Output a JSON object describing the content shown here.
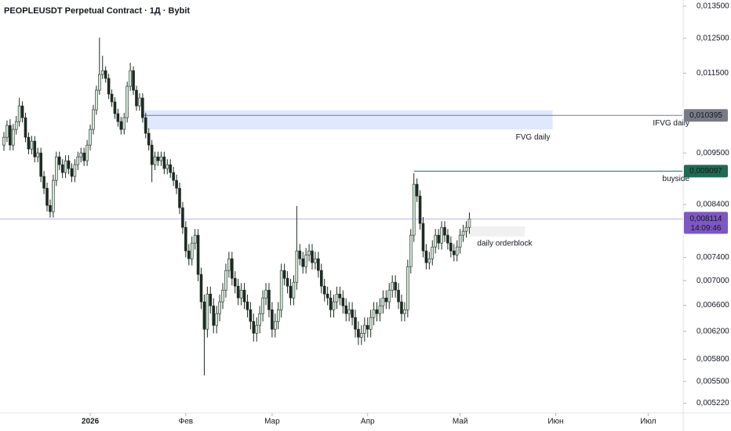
{
  "chart_data": {
    "type": "candlestick",
    "title": "PEOPLEUSDT Perpetual Contract · 1Д · Bybit",
    "up_color": "#d3e8d8",
    "down_color": "#1e2a22",
    "wick_color": "#1e2a22",
    "log_scale": true,
    "grid": false,
    "xlim": [
      -1.27,
      220.1
    ],
    "xticks": [
      {
        "value": 28,
        "label": "2026"
      },
      {
        "value": 59,
        "label": "Фев"
      },
      {
        "value": 87,
        "label": "Мар"
      },
      {
        "value": 118,
        "label": "Апр"
      },
      {
        "value": 148,
        "label": "Май"
      },
      {
        "value": 179,
        "label": "Июн"
      },
      {
        "value": 209,
        "label": "Июл"
      }
    ],
    "ylim": [
      0.0051,
      0.0137
    ],
    "yticks": [
      {
        "value": 0.0135,
        "label": "0,013500"
      },
      {
        "value": 0.0125,
        "label": "0,012500"
      },
      {
        "value": 0.0115,
        "label": "0,011500"
      },
      {
        "value": 0.0095,
        "label": "0,009500"
      },
      {
        "value": 0.0084,
        "label": "0,008400"
      },
      {
        "value": 0.0074,
        "label": "0,007400"
      },
      {
        "value": 0.007,
        "label": "0,007000"
      },
      {
        "value": 0.0066,
        "label": "0,006600"
      },
      {
        "value": 0.0062,
        "label": "0,006200"
      },
      {
        "value": 0.0058,
        "label": "0,005800"
      },
      {
        "value": 0.0055,
        "label": "0,005500"
      },
      {
        "value": 0.00522,
        "label": "0,005220"
      }
    ],
    "open": [
      0.009682,
      0.009865,
      0.010148,
      0.009682,
      0.010052,
      0.010243,
      0.010634,
      0.010339,
      0.009865,
      0.009591,
      0.009774,
      0.009413,
      0.009502,
      0.008983,
      0.008732,
      0.00838,
      0.008256,
      0.008898,
      0.009413,
      0.009239,
      0.009067,
      0.009326,
      0.009153,
      0.008983,
      0.009239,
      0.009413,
      0.009502,
      0.009326,
      0.009682,
      0.010052,
      0.010535,
      0.011041,
      0.011464,
      0.01157,
      0.011357,
      0.010938,
      0.010736,
      0.010438,
      0.010243,
      0.010052,
      0.010339,
      0.011145,
      0.01157,
      0.011041,
      0.010634,
      0.010837,
      0.010339,
      0.009959,
      0.009682,
      0.009239,
      0.009413,
      0.009326,
      0.009413,
      0.009153,
      0.009239,
      0.009067,
      0.008898,
      0.008732,
      0.008334,
      0.007951,
      0.007516,
      0.007376,
      0.007658,
      0.007804,
      0.007105,
      0.006654,
      0.006231,
      0.006779,
      0.006591,
      0.00629,
      0.006469,
      0.006654,
      0.006843,
      0.007172,
      0.007376,
      0.007039,
      0.006908,
      0.006716,
      0.006843,
      0.006654,
      0.006529,
      0.006349,
      0.006172,
      0.00629,
      0.006469,
      0.006716,
      0.006843,
      0.006529,
      0.006231,
      0.006349,
      0.006529,
      0.007172,
      0.007039,
      0.006908,
      0.006716,
      0.006973,
      0.007516,
      0.007376,
      0.007239,
      0.007445,
      0.007516,
      0.007307,
      0.007376,
      0.007172,
      0.006908,
      0.006779,
      0.006716,
      0.006529,
      0.006654,
      0.006779,
      0.006716,
      0.006591,
      0.006469,
      0.006529,
      0.006409,
      0.006231,
      0.006114,
      0.006172,
      0.00629,
      0.006231,
      0.006409,
      0.006529,
      0.006469,
      0.006591,
      0.006716,
      0.006654,
      0.006843,
      0.006973,
      0.006843,
      0.006654,
      0.006469,
      0.006529,
      0.007239,
      0.007804,
      0.008816,
      0.008571,
      0.008027,
      0.007516,
      0.007307,
      0.007376,
      0.007587,
      0.007804,
      0.007658,
      0.007951,
      0.007804,
      0.007658,
      0.007516,
      0.007445,
      0.007587,
      0.007804,
      0.007877,
      0.007951
    ],
    "high": [
      0.00999,
      0.01027,
      0.0103,
      0.01018,
      0.01038,
      0.01084,
      0.01075,
      0.01046,
      0.00998,
      0.0099,
      0.00989,
      0.00962,
      0.00962,
      0.0091,
      0.00885,
      0.0085,
      0.00902,
      0.00953,
      0.00953,
      0.00936,
      0.00945,
      0.00945,
      0.00927,
      0.00936,
      0.00953,
      0.00962,
      0.00962,
      0.0098,
      0.01017,
      0.01066,
      0.01116,
      0.01252,
      0.01199,
      0.01169,
      0.01148,
      0.01106,
      0.01086,
      0.01056,
      0.01036,
      0.01046,
      0.01127,
      0.01179,
      0.01169,
      0.01116,
      0.01096,
      0.01096,
      0.01046,
      0.01008,
      0.0098,
      0.00953,
      0.00953,
      0.00953,
      0.00953,
      0.00936,
      0.00936,
      0.00919,
      0.00902,
      0.00885,
      0.00845,
      0.00807,
      0.00764,
      0.00778,
      0.00792,
      0.00792,
      0.00722,
      0.00677,
      0.0069,
      0.0069,
      0.00671,
      0.00659,
      0.00677,
      0.00696,
      0.00729,
      0.0075,
      0.0075,
      0.00716,
      0.00703,
      0.00696,
      0.00696,
      0.00677,
      0.00665,
      0.00647,
      0.00641,
      0.00659,
      0.00684,
      0.00696,
      0.00696,
      0.00665,
      0.00647,
      0.00665,
      0.00729,
      0.00729,
      0.00716,
      0.00703,
      0.00709,
      0.00837,
      0.00764,
      0.0075,
      0.00757,
      0.00764,
      0.00764,
      0.0075,
      0.0075,
      0.00729,
      0.00703,
      0.0069,
      0.00684,
      0.00677,
      0.0069,
      0.0069,
      0.00684,
      0.00671,
      0.00665,
      0.00665,
      0.00653,
      0.00635,
      0.00629,
      0.00641,
      0.00641,
      0.00653,
      0.00665,
      0.00665,
      0.00671,
      0.00684,
      0.00684,
      0.00696,
      0.00709,
      0.00709,
      0.00696,
      0.00677,
      0.00665,
      0.00736,
      0.00792,
      0.00905,
      0.00894,
      0.00869,
      0.00815,
      0.00764,
      0.0075,
      0.00771,
      0.00792,
      0.00792,
      0.00807,
      0.00807,
      0.00792,
      0.00778,
      0.00764,
      0.00771,
      0.00792,
      0.008,
      0.00807,
      0.00824
    ],
    "low": [
      0.00955,
      0.00975,
      0.00956,
      0.00956,
      0.00993,
      0.01012,
      0.01022,
      0.00975,
      0.00947,
      0.00947,
      0.00929,
      0.00929,
      0.00886,
      0.00861,
      0.00826,
      0.00814,
      0.00814,
      0.00878,
      0.00912,
      0.00895,
      0.00895,
      0.00903,
      0.00886,
      0.00886,
      0.00912,
      0.00929,
      0.00921,
      0.00921,
      0.00956,
      0.00993,
      0.01041,
      0.01092,
      0.01134,
      0.01124,
      0.01081,
      0.01061,
      0.01031,
      0.01012,
      0.00993,
      0.00993,
      0.01022,
      0.01102,
      0.01092,
      0.01051,
      0.01051,
      0.01022,
      0.00984,
      0.00956,
      0.00886,
      0.00912,
      0.00921,
      0.00921,
      0.00903,
      0.00903,
      0.00895,
      0.00878,
      0.00861,
      0.00821,
      0.00783,
      0.0074,
      0.00726,
      0.00726,
      0.00754,
      0.00699,
      0.00654,
      0.00558,
      0.00611,
      0.00647,
      0.00617,
      0.00617,
      0.00635,
      0.00654,
      0.00672,
      0.00705,
      0.00692,
      0.00679,
      0.0066,
      0.0066,
      0.00654,
      0.00641,
      0.00623,
      0.00605,
      0.00605,
      0.00617,
      0.00635,
      0.0066,
      0.00641,
      0.00611,
      0.00611,
      0.00623,
      0.00641,
      0.00692,
      0.00679,
      0.0066,
      0.0066,
      0.00685,
      0.00726,
      0.00712,
      0.00712,
      0.00733,
      0.00719,
      0.00719,
      0.00705,
      0.00679,
      0.00666,
      0.0066,
      0.00641,
      0.00641,
      0.00654,
      0.0066,
      0.00647,
      0.00635,
      0.00635,
      0.00629,
      0.00611,
      0.006,
      0.006,
      0.00605,
      0.00611,
      0.00611,
      0.00629,
      0.00635,
      0.00635,
      0.00647,
      0.00654,
      0.00654,
      0.00672,
      0.00672,
      0.00654,
      0.00635,
      0.00635,
      0.00641,
      0.00712,
      0.00768,
      0.00845,
      0.00791,
      0.0074,
      0.00719,
      0.00719,
      0.00726,
      0.00747,
      0.00754,
      0.00754,
      0.00768,
      0.00754,
      0.0074,
      0.00733,
      0.00733,
      0.00747,
      0.00768,
      0.00776,
      0.00783
    ],
    "close": [
      0.009865,
      0.010148,
      0.009682,
      0.010052,
      0.010243,
      0.010634,
      0.010339,
      0.009865,
      0.009591,
      0.009774,
      0.009413,
      0.009502,
      0.008983,
      0.008732,
      0.00838,
      0.008256,
      0.008898,
      0.009413,
      0.009239,
      0.009067,
      0.009326,
      0.009153,
      0.008983,
      0.009239,
      0.009413,
      0.009502,
      0.009326,
      0.009682,
      0.010052,
      0.010535,
      0.011041,
      0.011464,
      0.01157,
      0.011357,
      0.010938,
      0.010736,
      0.010438,
      0.010243,
      0.010052,
      0.010339,
      0.011145,
      0.01157,
      0.011041,
      0.010634,
      0.010837,
      0.010339,
      0.009959,
      0.009682,
      0.009239,
      0.009413,
      0.009326,
      0.009413,
      0.009153,
      0.009239,
      0.009067,
      0.008898,
      0.008732,
      0.008334,
      0.007951,
      0.007516,
      0.007376,
      0.007658,
      0.007804,
      0.007105,
      0.006654,
      0.006231,
      0.006779,
      0.006591,
      0.00629,
      0.006469,
      0.006654,
      0.006843,
      0.007172,
      0.007376,
      0.007039,
      0.006908,
      0.006716,
      0.006843,
      0.006654,
      0.006529,
      0.006349,
      0.006172,
      0.00629,
      0.006469,
      0.006716,
      0.006843,
      0.006529,
      0.006231,
      0.006349,
      0.006529,
      0.007172,
      0.007039,
      0.006908,
      0.006716,
      0.006973,
      0.007516,
      0.007376,
      0.007239,
      0.007445,
      0.007516,
      0.007307,
      0.007376,
      0.007172,
      0.006908,
      0.006779,
      0.006716,
      0.006529,
      0.006654,
      0.006779,
      0.006716,
      0.006591,
      0.006469,
      0.006529,
      0.006409,
      0.006231,
      0.006114,
      0.006172,
      0.00629,
      0.006231,
      0.006409,
      0.006529,
      0.006469,
      0.006591,
      0.006716,
      0.006654,
      0.006843,
      0.006973,
      0.006843,
      0.006654,
      0.006469,
      0.006529,
      0.007239,
      0.007804,
      0.008816,
      0.008571,
      0.008027,
      0.007516,
      0.007307,
      0.007376,
      0.007587,
      0.007804,
      0.007658,
      0.007951,
      0.007804,
      0.007658,
      0.007516,
      0.007445,
      0.007587,
      0.007804,
      0.007877,
      0.007951,
      0.008114
    ],
    "zones": [
      {
        "label": "FVG daily",
        "top": 0.01052,
        "bottom": 0.01005,
        "start": 45,
        "end": 178,
        "color": "#2962ff",
        "label_color": "#3f51b5"
      },
      {
        "label": "daily orderblock",
        "top": 0.00797,
        "bottom": 0.00778,
        "start": 151,
        "end": 169,
        "color": "#9e9e9e",
        "label_color": "#333333"
      }
    ],
    "levels": [
      {
        "label": "IFVG daily",
        "value": 0.010395,
        "value_label": "0,010395",
        "start": 45,
        "color": "#787b86",
        "label_color": "#131722"
      },
      {
        "label": "buyside",
        "value": 0.009097,
        "value_label": "0,009097",
        "start": 133,
        "color": "#1e6b52",
        "label_color": "#1e6b52"
      }
    ],
    "current_price": {
      "value": 0.008114,
      "value_label": "0,008114",
      "countdown": "14:09:46",
      "color": "#7e57c2"
    }
  }
}
